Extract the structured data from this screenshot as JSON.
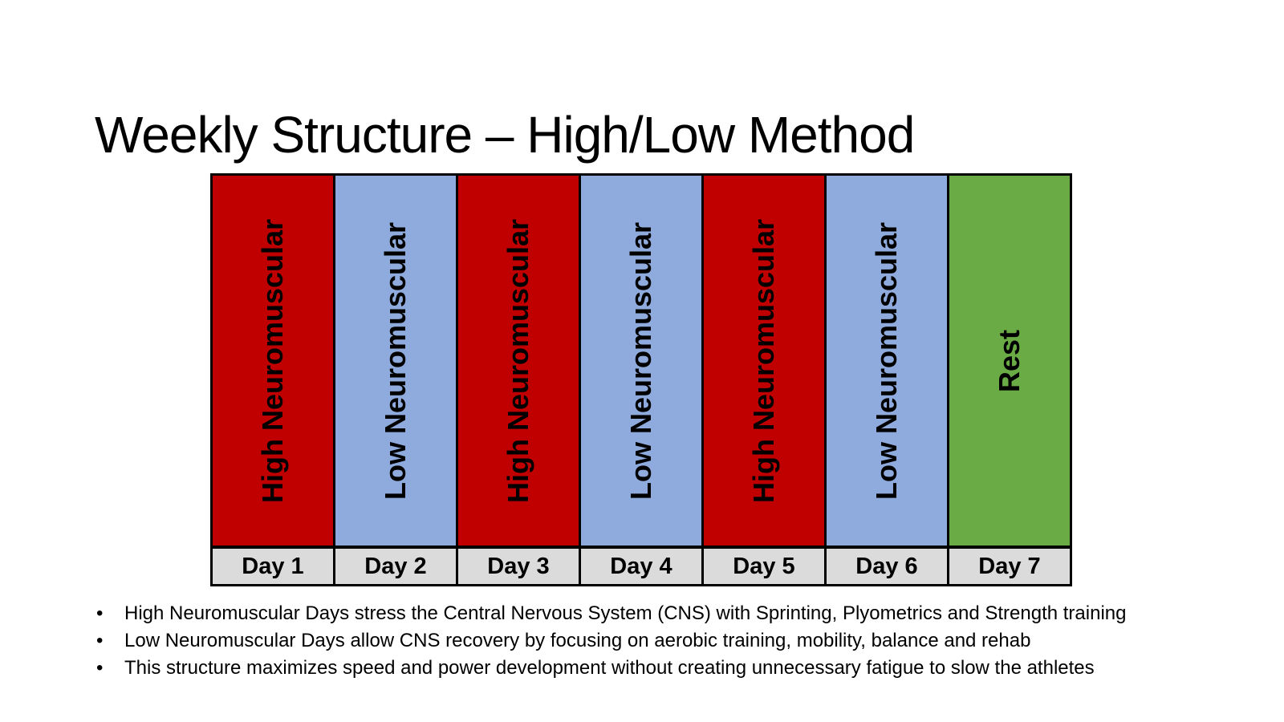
{
  "slide": {
    "title": "Weekly Structure – High/Low Method",
    "bullet_char": "•",
    "bullets": [
      "High Neuromuscular Days stress the Central Nervous System (CNS) with Sprinting, Plyometrics and Strength training",
      "Low Neuromuscular Days allow CNS recovery by focusing on aerobic training, mobility, balance and rehab",
      "This structure maximizes speed and power development without creating unnecessary fatigue to slow the athletes"
    ],
    "table": {
      "footer_bg": "#DBDBDB",
      "days": [
        {
          "day_label": "Day 1",
          "type_label": "High Neuromuscular",
          "color": "#C00000"
        },
        {
          "day_label": "Day 2",
          "type_label": "Low Neuromuscular",
          "color": "#8FAADC"
        },
        {
          "day_label": "Day 3",
          "type_label": "High Neuromuscular",
          "color": "#C00000"
        },
        {
          "day_label": "Day 4",
          "type_label": "Low Neuromuscular",
          "color": "#8FAADC"
        },
        {
          "day_label": "Day 5",
          "type_label": "High Neuromuscular",
          "color": "#C00000"
        },
        {
          "day_label": "Day 6",
          "type_label": "Low Neuromuscular",
          "color": "#8FAADC"
        },
        {
          "day_label": "Day 7",
          "type_label": "Rest",
          "color": "#6AAB45"
        }
      ]
    },
    "colors": {
      "high_day": "#C00000",
      "low_day": "#8FAADC",
      "rest_day": "#6AAB45",
      "footer": "#DBDBDB",
      "border": "#000000",
      "text": "#000000",
      "background": "#FFFFFF"
    }
  }
}
